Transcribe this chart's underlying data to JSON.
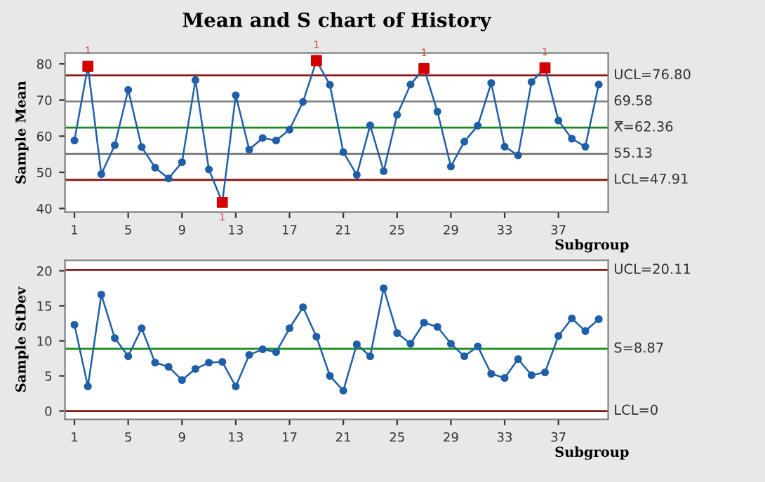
{
  "chart_data": [
    {
      "type": "line",
      "title": "Mean and S chart of History",
      "xlabel": "Subgroup",
      "ylabel": "Sample Mean",
      "x": [
        1,
        2,
        3,
        4,
        5,
        6,
        7,
        8,
        9,
        10,
        11,
        12,
        13,
        14,
        15,
        16,
        17,
        18,
        19,
        20,
        21,
        22,
        23,
        24,
        25,
        26,
        27,
        28,
        29,
        30,
        31,
        32,
        33,
        34,
        35,
        36,
        37,
        38,
        39,
        40
      ],
      "series": [
        {
          "color": "#1f5fa8",
          "marker": "circle",
          "values": [
            58.8,
            79.3,
            49.5,
            57.5,
            72.8,
            57.0,
            51.3,
            48.3,
            52.8,
            75.5,
            50.8,
            41.7,
            71.3,
            56.3,
            59.5,
            58.8,
            61.8,
            69.5,
            80.9,
            74.2,
            55.6,
            49.3,
            63.0,
            50.3,
            65.9,
            74.3,
            78.7,
            66.8,
            51.6,
            58.5,
            62.9,
            74.7,
            57.1,
            54.7,
            75.0,
            78.9,
            64.3,
            59.3,
            57.1,
            74.3
          ]
        },
        {
          "type": "scatter",
          "color": "#d40000",
          "marker": "square",
          "x": [
            2,
            12,
            19,
            27,
            36
          ],
          "values": [
            79.3,
            41.7,
            80.9,
            78.7,
            78.9
          ]
        }
      ],
      "ref_lines": [
        {
          "axis": "y",
          "value": 76.8,
          "label": "UCL=76.80",
          "color": "#8b1a1a"
        },
        {
          "axis": "y",
          "value": 69.58,
          "label": "69.58",
          "color": "#808080"
        },
        {
          "axis": "y",
          "value": 62.36,
          "label": "X̿=62.36",
          "color": "#1a8a1a"
        },
        {
          "axis": "y",
          "value": 55.13,
          "label": "55.13",
          "color": "#808080"
        },
        {
          "axis": "y",
          "value": 47.91,
          "label": "LCL=47.91",
          "color": "#8b1a1a"
        }
      ],
      "annotations": [
        {
          "text": "1",
          "x": 2,
          "y": 79.3
        },
        {
          "text": "1",
          "x": 12,
          "y": 41.7
        },
        {
          "text": "1",
          "x": 19,
          "y": 80.9
        },
        {
          "text": "1",
          "x": 27,
          "y": 78.7
        },
        {
          "text": "1",
          "x": 36,
          "y": 78.9
        }
      ],
      "xlim": [
        0.3,
        40.7
      ],
      "xticks": [
        1,
        5,
        9,
        13,
        17,
        21,
        25,
        29,
        33,
        37
      ],
      "ylim": [
        39,
        83
      ],
      "yticks": [
        40,
        50,
        60,
        70,
        80
      ],
      "grid": false,
      "legend": false
    },
    {
      "type": "line",
      "xlabel": "Subgroup",
      "ylabel": "Sample StDev",
      "x": [
        1,
        2,
        3,
        4,
        5,
        6,
        7,
        8,
        9,
        10,
        11,
        12,
        13,
        14,
        15,
        16,
        17,
        18,
        19,
        20,
        21,
        22,
        23,
        24,
        25,
        26,
        27,
        28,
        29,
        30,
        31,
        32,
        33,
        34,
        35,
        36,
        37,
        38,
        39,
        40
      ],
      "series": [
        {
          "color": "#1f5fa8",
          "marker": "circle",
          "values": [
            12.3,
            3.5,
            16.6,
            10.4,
            7.8,
            11.8,
            6.9,
            6.3,
            4.4,
            6.0,
            6.9,
            7.0,
            3.5,
            8.0,
            8.8,
            8.4,
            11.8,
            14.8,
            10.6,
            5.0,
            2.9,
            9.5,
            7.8,
            17.5,
            11.1,
            9.6,
            12.6,
            12.0,
            9.6,
            7.8,
            9.2,
            5.3,
            4.7,
            7.4,
            5.1,
            5.5,
            10.7,
            13.2,
            11.4,
            13.1
          ]
        }
      ],
      "ref_lines": [
        {
          "axis": "y",
          "value": 20.11,
          "label": "UCL=20.11",
          "color": "#8b1a1a"
        },
        {
          "axis": "y",
          "value": 8.87,
          "label": "S̄=8.87",
          "color": "#1a8a1a"
        },
        {
          "axis": "y",
          "value": 0,
          "label": "LCL=0",
          "color": "#8b1a1a"
        }
      ],
      "xlim": [
        0.3,
        40.7
      ],
      "xticks": [
        1,
        5,
        9,
        13,
        17,
        21,
        25,
        29,
        33,
        37
      ],
      "ylim": [
        -1.2,
        21.5
      ],
      "yticks": [
        0,
        5,
        10,
        15,
        20
      ],
      "grid": false,
      "legend": false
    }
  ]
}
